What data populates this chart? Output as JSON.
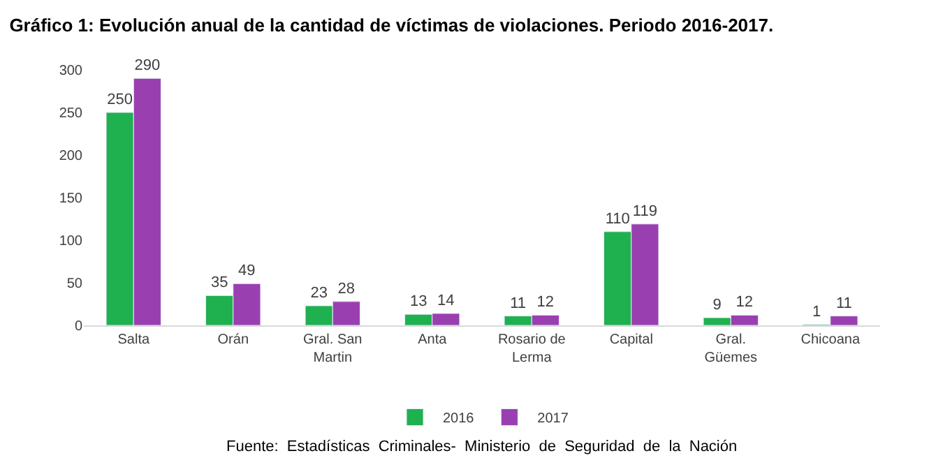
{
  "chart_data": {
    "type": "bar",
    "title": "Gráfico 1: Evolución anual de la cantidad de víctimas de violaciones. Periodo 2016-2017.",
    "categories": [
      "Salta",
      "Orán",
      "Gral. San Martin",
      "Anta",
      "Rosario de Lerma",
      "Capital",
      "Gral. Güemes",
      "Chicoana"
    ],
    "series": [
      {
        "name": "2016",
        "color": "#1fb04f",
        "values": [
          250,
          35,
          23,
          13,
          11,
          110,
          9,
          1
        ]
      },
      {
        "name": "2017",
        "color": "#9a3fb0",
        "values": [
          290,
          49,
          28,
          14,
          12,
          119,
          12,
          11
        ]
      }
    ],
    "ylim": [
      0,
      300
    ],
    "yticks": [
      0,
      50,
      100,
      150,
      200,
      250,
      300
    ],
    "grid": false,
    "legend": "bottom",
    "data_labels": true,
    "annotations": [
      "Fuente:  Estadísticas  Criminales-  Ministerio  de  Seguridad  de  la  Nación"
    ]
  }
}
